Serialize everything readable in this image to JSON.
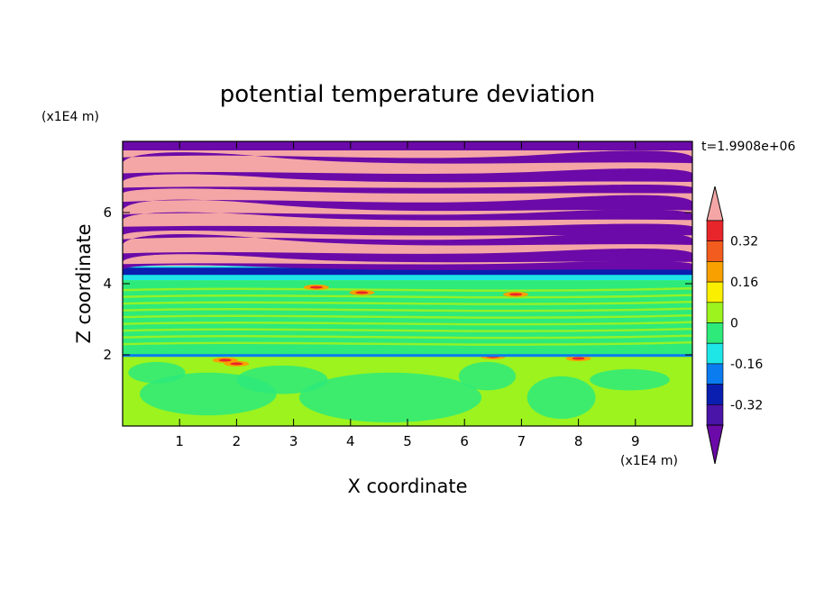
{
  "chart_data": {
    "type": "heatmap",
    "title": "potential temperature deviation",
    "xlabel": "X coordinate",
    "ylabel": "Z coordinate",
    "x_unit": "(x1E4 m)",
    "y_unit": "(x1E4 m)",
    "time_label": "t=1.9908e+06",
    "xlim": [
      0,
      10
    ],
    "ylim": [
      0,
      8
    ],
    "x_ticks": [
      "1",
      "2",
      "3",
      "4",
      "5",
      "6",
      "7",
      "8",
      "9"
    ],
    "y_ticks": [
      "2",
      "4",
      "6"
    ],
    "colorbar": {
      "levels": [
        -0.48,
        -0.4,
        -0.32,
        -0.24,
        -0.16,
        -0.08,
        0,
        0.08,
        0.16,
        0.24,
        0.32,
        0.4,
        0.48
      ],
      "tick_labels": [
        "0.32",
        "0.16",
        "0",
        "-0.16",
        "-0.32"
      ],
      "tick_values": [
        0.32,
        0.16,
        0,
        -0.16,
        -0.32
      ],
      "colors_top_to_bottom": [
        "#f4a6a6",
        "#e8252a",
        "#f25c1e",
        "#f7a000",
        "#fbef00",
        "#9df31e",
        "#2dea7a",
        "#1fe6e6",
        "#0a7cf0",
        "#0a1fb0",
        "#4a14a8",
        "#6b0aa8"
      ]
    },
    "field_layers": [
      {
        "z_range": [
          0,
          2
        ],
        "description_value": 0.05,
        "color": "#9df31e"
      },
      {
        "z_range": [
          2,
          4.1
        ],
        "description_value": -0.05,
        "color": "#2dea7a"
      },
      {
        "z_range": [
          4.1,
          4.5
        ],
        "description_value": -0.3,
        "color": "#1fe6e6"
      },
      {
        "z_range": [
          4.5,
          8
        ],
        "description_value": 0.45,
        "color": "#f4a6a6"
      }
    ]
  }
}
